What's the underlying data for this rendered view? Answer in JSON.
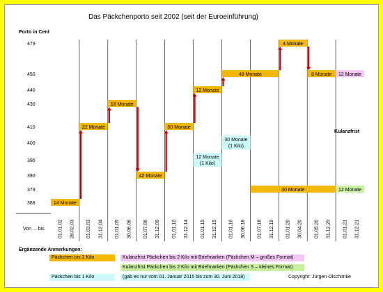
{
  "colors": {
    "orange": "#f5b800",
    "orange_dark": "#e8a800",
    "pink": "#f4c8f4",
    "green": "#c8f0a0",
    "cyan": "#ccfafa",
    "red": "#cc0000",
    "line": "#000000",
    "bg": "#ffff00"
  },
  "labels": {
    "y_unit": "Porto in Cent",
    "period": "Von ... bis",
    "notes_title": "Ergänzende Anmerkungen:",
    "kulanzfrist": "Kulanzfrist",
    "copyright": "Copyright: Jürgen Olschimke"
  },
  "legend": [
    {
      "text": "Päckchen bis 2 Kilo",
      "color": "orange"
    },
    {
      "text": "Kulanzfrist Päckchen bis 2 Kilo mit Briefmarken (Päckchen M – großes Format)",
      "color": "pink"
    },
    {
      "text": "Kulanzfrist Päckchen bis 2 Kilo mit Briefmarken (Päckchen S – kleines Format)",
      "color": "green"
    },
    {
      "text": "Päckchen bis 1 Kilo",
      "color": "cyan"
    },
    {
      "text": "(gab es nur vom 01. Januar 2015 bis zum 30. Juni 2018)",
      "color": "cyan"
    }
  ],
  "chart_data": {
    "type": "step",
    "title": "Das Päckchenporto seit 2002 (seit der Euroeinführung)",
    "ylabel": "Porto in Cent",
    "y_ticks": [
      368,
      379,
      390,
      395,
      400,
      410,
      430,
      440,
      450,
      479
    ],
    "x_ticks": [
      "01.01.02",
      "28.02.03",
      "01.03.03",
      "31.12.04",
      "01.01.05",
      "30.06.06",
      "01.07.06",
      "31.12.09",
      "01.01.10",
      "31.12.14",
      "01.01.15",
      "31.12.15",
      "01.01.16",
      "30.06.18",
      "01.07.18",
      "31.12.19",
      "01.01.20",
      "30.04.20",
      "01.05.20",
      "31.12.20",
      "01.01.21",
      "31.12.21"
    ],
    "series": [
      {
        "name": "Päckchen bis 2 Kilo",
        "segments": [
          {
            "value": 368,
            "label": "14 Monate",
            "start": 0,
            "end": 2
          },
          {
            "value": 410,
            "label": "22 Monate",
            "start": 2,
            "end": 4
          },
          {
            "value": 430,
            "label": "18 Monate",
            "start": 4,
            "end": 6
          },
          {
            "value": 390,
            "label": "42 Monate",
            "start": 6,
            "end": 8
          },
          {
            "value": 410,
            "label": "60 Monate",
            "start": 8,
            "end": 10
          },
          {
            "value": 440,
            "label": "12 Monate",
            "start": 10,
            "end": 12
          },
          {
            "value": 450,
            "label": "48 Monate",
            "start": 12,
            "end": 16
          },
          {
            "value": 479,
            "label": "4 Monate",
            "start": 16,
            "end": 18
          },
          {
            "value": 450,
            "label": "8 Monate",
            "start": 18,
            "end": 20
          }
        ]
      },
      {
        "name": "Päckchen S",
        "segments": [
          {
            "value": 379,
            "label": "30 Monate",
            "start": 14,
            "end": 20
          }
        ]
      },
      {
        "name": "Kulanzfrist M",
        "segments": [
          {
            "value": 450,
            "label": "12 Monate",
            "start": 20,
            "end": 22
          }
        ]
      },
      {
        "name": "Kulanzfrist S",
        "segments": [
          {
            "value": 379,
            "label": "12 Monate",
            "start": 20,
            "end": 22
          }
        ]
      },
      {
        "name": "Päckchen bis 1 Kilo",
        "segments": [
          {
            "value": 395,
            "label": "12 Monate (1 Kilo)",
            "start": 10,
            "end": 12
          },
          {
            "value": 400,
            "label": "30 Monate (1 Kilo)",
            "start": 12,
            "end": 14
          }
        ]
      }
    ]
  }
}
